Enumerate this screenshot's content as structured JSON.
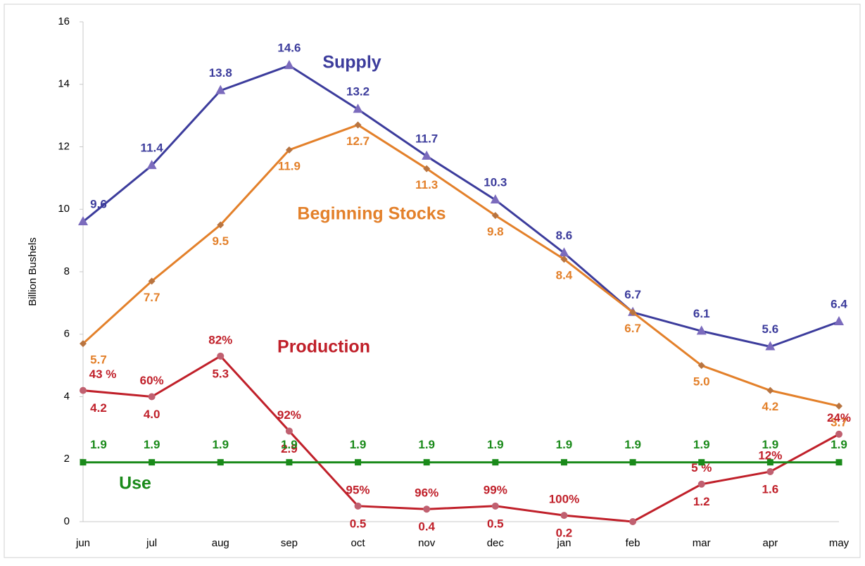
{
  "chart_data": {
    "type": "line",
    "y_label": "Billion Bushels",
    "categories": [
      "jun",
      "jul",
      "aug",
      "sep",
      "oct",
      "nov",
      "dec",
      "jan",
      "feb",
      "mar",
      "apr",
      "may"
    ],
    "ylim": [
      0,
      16
    ],
    "yticks": [
      0,
      2,
      4,
      6,
      8,
      10,
      12,
      14,
      16
    ],
    "series": [
      {
        "name": "Supply",
        "color": "#3c3c9c",
        "marker": "triangle",
        "marker_color": "#7b6bbd",
        "values": [
          9.6,
          11.4,
          13.8,
          14.6,
          13.2,
          11.7,
          10.3,
          8.6,
          6.7,
          6.1,
          5.6,
          6.4
        ]
      },
      {
        "name": "Beginning Stocks",
        "color": "#e3802a",
        "marker": "diamond",
        "marker_color": "#b87440",
        "values": [
          5.7,
          7.7,
          9.5,
          11.9,
          12.7,
          11.3,
          9.8,
          8.4,
          6.7,
          5.0,
          4.2,
          3.7
        ],
        "value_labels": [
          "5.7",
          "7.7",
          "9.5",
          "11.9",
          "12.7",
          "11.3",
          "9.8",
          "8.4",
          "6.7",
          "5.0",
          "4.2",
          "3.7"
        ]
      },
      {
        "name": "Production",
        "color": "#c0202a",
        "marker": "circle",
        "marker_color": "#c06070",
        "values": [
          4.2,
          4.0,
          5.3,
          2.9,
          0.5,
          0.4,
          0.5,
          0.2,
          0,
          1.2,
          1.6,
          2.8
        ],
        "value_labels": [
          "4.2",
          "4.0",
          "5.3",
          "2.9",
          "0.5",
          "0.4",
          "0.5",
          "0.2",
          null,
          "1.2",
          "1.6",
          null
        ],
        "percent_labels": [
          "43 %",
          "60%",
          "82%",
          "92%",
          "95%",
          "96%",
          "99%",
          "100%",
          null,
          "5 %",
          "12%",
          "24%"
        ]
      },
      {
        "name": "Use",
        "color": "#1a8a1a",
        "marker": "square",
        "marker_color": "#1a8a1a",
        "values": [
          1.9,
          1.9,
          1.9,
          1.9,
          1.9,
          1.9,
          1.9,
          1.9,
          1.9,
          1.9,
          1.9,
          1.9
        ]
      }
    ]
  }
}
